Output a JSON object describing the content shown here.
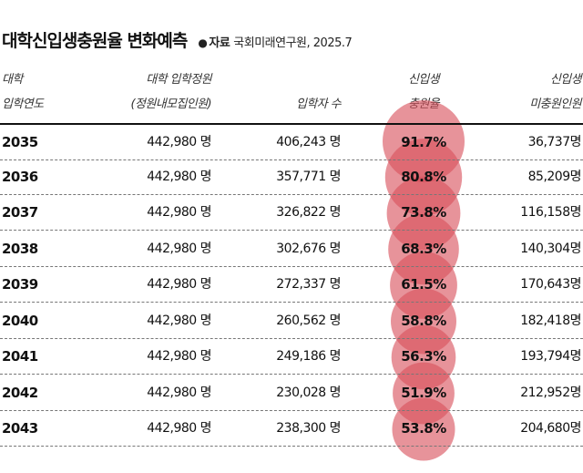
{
  "title": "대학신입생충원율 변화예측",
  "source": {
    "dot": "●",
    "label": "자료",
    "text": "국회미래연구원, 2025.7"
  },
  "headers": {
    "year": [
      "대학",
      "입학연도"
    ],
    "quota": [
      "대학 입학정원",
      "(정원내모집인원)"
    ],
    "admitted": [
      "입학자 수"
    ],
    "rate": [
      "신입생",
      "충원율"
    ],
    "shortfall": [
      "신입생",
      "미충원인원"
    ]
  },
  "colors": {
    "bubble": "#d9505c",
    "rule": "#111111",
    "dash": "#777777"
  },
  "chart_data": {
    "type": "table",
    "title": "대학신입생충원율 변화예측",
    "columns": [
      "대학 입학연도",
      "대학 입학정원 (정원내모집인원)",
      "입학자 수",
      "신입생 충원율",
      "신입생 미충원인원"
    ],
    "rows": [
      {
        "year": "2035",
        "quota": "442,980 명",
        "admitted": "406,243 명",
        "rate": "91.7%",
        "rate_value": 91.7,
        "shortfall": "36,737명"
      },
      {
        "year": "2036",
        "quota": "442,980 명",
        "admitted": "357,771 명",
        "rate": "80.8%",
        "rate_value": 80.8,
        "shortfall": "85,209명"
      },
      {
        "year": "2037",
        "quota": "442,980 명",
        "admitted": "326,822 명",
        "rate": "73.8%",
        "rate_value": 73.8,
        "shortfall": "116,158명"
      },
      {
        "year": "2038",
        "quota": "442,980 명",
        "admitted": "302,676 명",
        "rate": "68.3%",
        "rate_value": 68.3,
        "shortfall": "140,304명"
      },
      {
        "year": "2039",
        "quota": "442,980 명",
        "admitted": "272,337 명",
        "rate": "61.5%",
        "rate_value": 61.5,
        "shortfall": "170,643명"
      },
      {
        "year": "2040",
        "quota": "442,980 명",
        "admitted": "260,562 명",
        "rate": "58.8%",
        "rate_value": 58.8,
        "shortfall": "182,418명"
      },
      {
        "year": "2041",
        "quota": "442,980 명",
        "admitted": "249,186 명",
        "rate": "56.3%",
        "rate_value": 56.3,
        "shortfall": "193,794명"
      },
      {
        "year": "2042",
        "quota": "442,980 명",
        "admitted": "230,028 명",
        "rate": "51.9%",
        "rate_value": 51.9,
        "shortfall": "212,952명"
      },
      {
        "year": "2043",
        "quota": "442,980 명",
        "admitted": "238,300 명",
        "rate": "53.8%",
        "rate_value": 53.8,
        "shortfall": "204,680명"
      }
    ]
  }
}
